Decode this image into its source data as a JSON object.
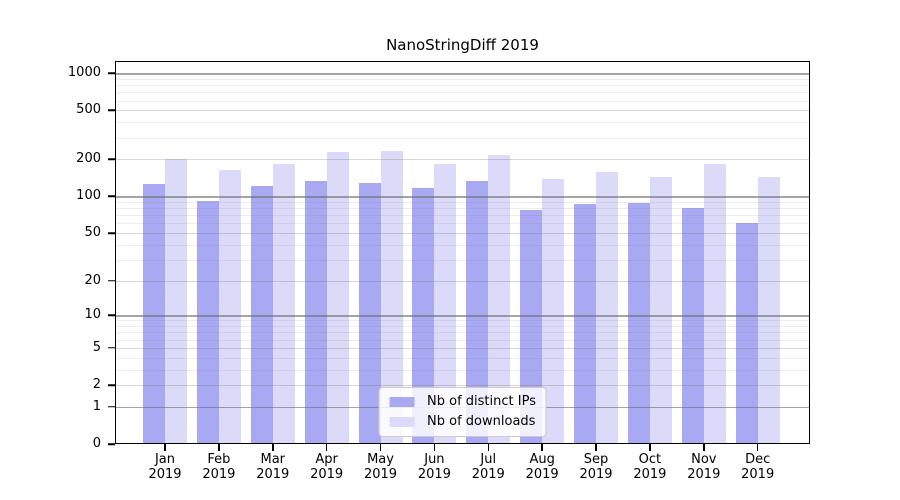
{
  "chart_data": {
    "type": "bar",
    "title": "NanoStringDiff 2019",
    "categories": [
      "Jan 2019",
      "Feb 2019",
      "Mar 2019",
      "Apr 2019",
      "May 2019",
      "Jun 2019",
      "Jul 2019",
      "Aug 2019",
      "Sep 2019",
      "Oct 2019",
      "Nov 2019",
      "Dec 2019"
    ],
    "series": [
      {
        "name": "Nb of distinct IPs",
        "color": "#a9a9f3",
        "values": [
          125,
          92,
          121,
          134,
          128,
          117,
          134,
          77,
          87,
          88,
          81,
          60
        ]
      },
      {
        "name": "Nb of downloads",
        "color": "#dbdbf9",
        "values": [
          200,
          163,
          183,
          228,
          234,
          184,
          219,
          138,
          157,
          143,
          184,
          144
        ]
      }
    ],
    "xlabel": "",
    "ylabel": "",
    "y_scale": "log1p",
    "ylim": [
      0,
      1260
    ],
    "y_ticks": [
      0,
      1,
      2,
      5,
      10,
      20,
      50,
      100,
      200,
      500,
      1000
    ],
    "grid": {
      "major": [
        1,
        10,
        100,
        1000
      ],
      "secondary": [
        2,
        5,
        20,
        50,
        200,
        500
      ],
      "minor": [
        3,
        4,
        6,
        7,
        8,
        9,
        30,
        40,
        60,
        70,
        80,
        90,
        300,
        400,
        600,
        700,
        800,
        900
      ]
    },
    "grid_on": true,
    "legend_position": "bottom-center",
    "axis_color": "#000000",
    "background_color": "#ffffff"
  }
}
